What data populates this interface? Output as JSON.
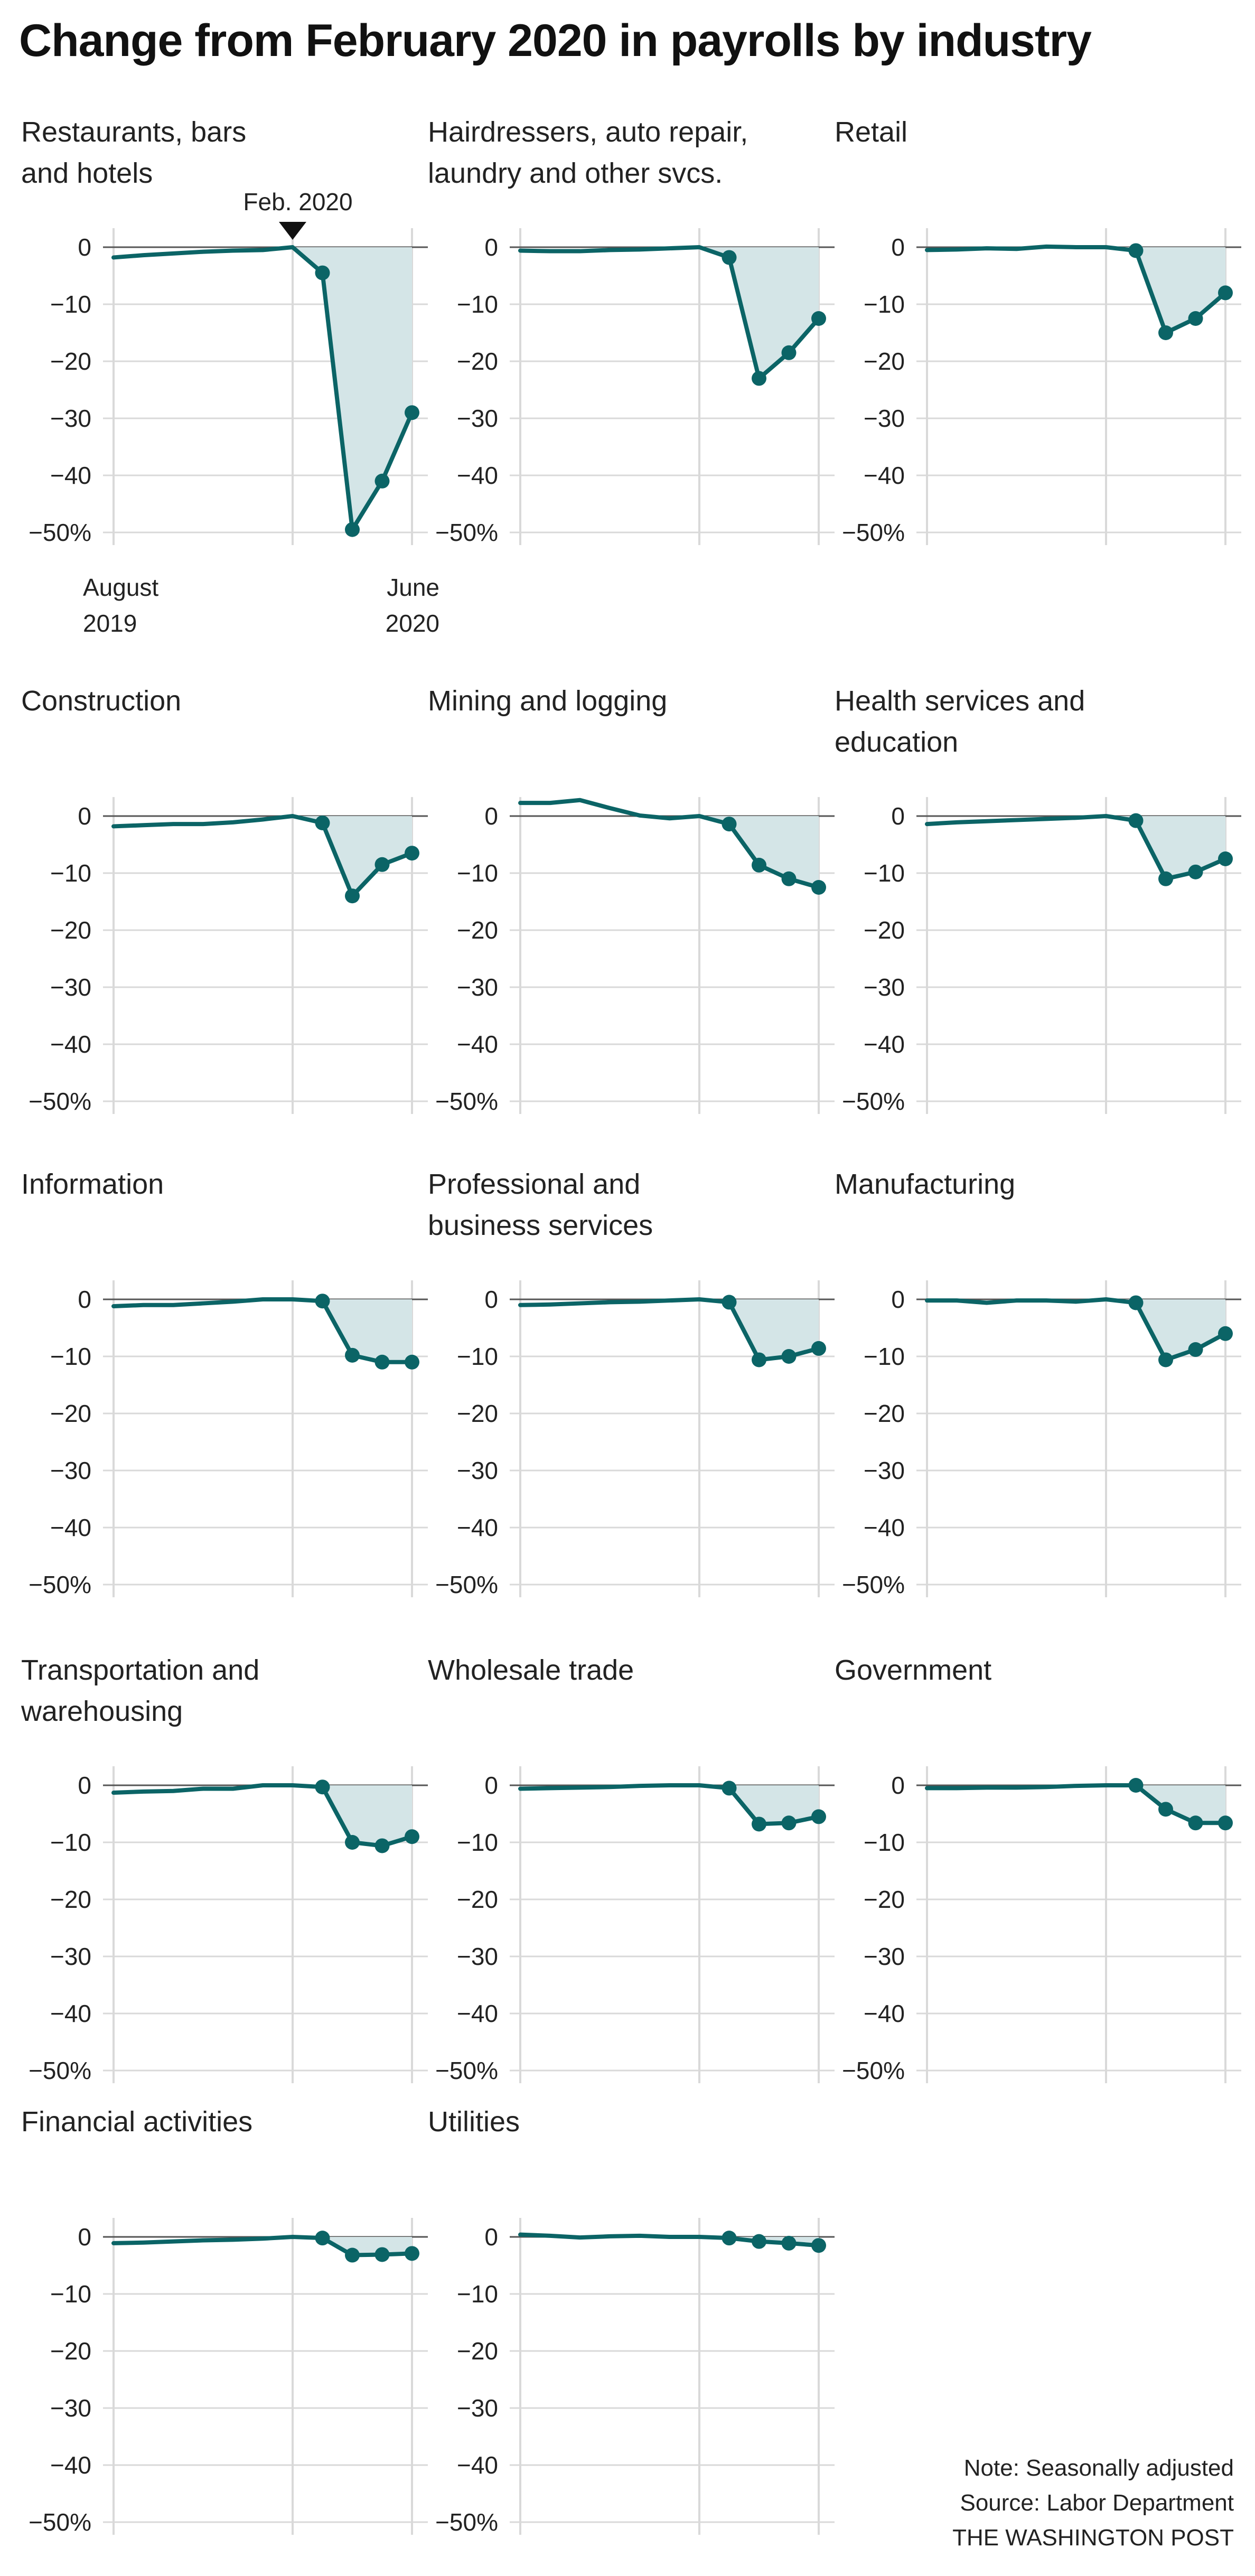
{
  "title": "Change from February 2020 in payrolls by industry",
  "note": "Note: Seasonally adjusted",
  "source": "Source: Labor Department",
  "credit": "THE WASHINGTON POST",
  "colors": {
    "line": "#0b6466",
    "fill": "#d4e5e7",
    "grid": "#d9d9d9",
    "zero": "#555555",
    "text": "#222222"
  },
  "annotation": {
    "label": "Feb. 2020",
    "x": "2020-02"
  },
  "x_axis_labels": {
    "start": [
      "August",
      "2019"
    ],
    "end": [
      "June",
      "2020"
    ]
  },
  "chart_data": [
    {
      "type": "area",
      "title": [
        "Restaurants, bars",
        "and hotels"
      ],
      "x": [
        "2019-08",
        "2019-09",
        "2019-10",
        "2019-11",
        "2019-12",
        "2020-01",
        "2020-02",
        "2020-03",
        "2020-04",
        "2020-05",
        "2020-06"
      ],
      "y": [
        -1.8,
        -1.4,
        -1.1,
        -0.8,
        -0.6,
        -0.5,
        0,
        -4.5,
        -49.5,
        -41,
        -29
      ],
      "yticks": [
        0,
        -10,
        -20,
        -30,
        -40,
        -50
      ],
      "ylim": [
        -50,
        3
      ],
      "y_unit": "%",
      "markers_from": "2020-03"
    },
    {
      "type": "area",
      "title": [
        "Hairdressers, auto repair,",
        "laundry and other svcs."
      ],
      "x": [
        "2019-08",
        "2019-09",
        "2019-10",
        "2019-11",
        "2019-12",
        "2020-01",
        "2020-02",
        "2020-03",
        "2020-04",
        "2020-05",
        "2020-06"
      ],
      "y": [
        -0.6,
        -0.7,
        -0.7,
        -0.5,
        -0.4,
        -0.2,
        0,
        -1.8,
        -23,
        -18.5,
        -12.5
      ],
      "yticks": [
        0,
        -10,
        -20,
        -30,
        -40,
        -50
      ],
      "ylim": [
        -50,
        3
      ],
      "y_unit": "%",
      "markers_from": "2020-03"
    },
    {
      "type": "area",
      "title": [
        "Retail"
      ],
      "x": [
        "2019-08",
        "2019-09",
        "2019-10",
        "2019-11",
        "2019-12",
        "2020-01",
        "2020-02",
        "2020-03",
        "2020-04",
        "2020-05",
        "2020-06"
      ],
      "y": [
        -0.5,
        -0.4,
        -0.2,
        -0.3,
        0.1,
        0,
        0,
        -0.6,
        -15,
        -12.5,
        -8
      ],
      "yticks": [
        0,
        -10,
        -20,
        -30,
        -40,
        -50
      ],
      "ylim": [
        -50,
        3
      ],
      "y_unit": "%",
      "markers_from": "2020-03"
    },
    {
      "type": "area",
      "title": [
        "Construction"
      ],
      "x": [
        "2019-08",
        "2019-09",
        "2019-10",
        "2019-11",
        "2019-12",
        "2020-01",
        "2020-02",
        "2020-03",
        "2020-04",
        "2020-05",
        "2020-06"
      ],
      "y": [
        -1.8,
        -1.6,
        -1.4,
        -1.4,
        -1.1,
        -0.6,
        0,
        -1.2,
        -14,
        -8.5,
        -6.5
      ],
      "yticks": [
        0,
        -10,
        -20,
        -30,
        -40,
        -50
      ],
      "ylim": [
        -50,
        3
      ],
      "y_unit": "%",
      "markers_from": "2020-03"
    },
    {
      "type": "area",
      "title": [
        "Mining and logging"
      ],
      "x": [
        "2019-08",
        "2019-09",
        "2019-10",
        "2019-11",
        "2019-12",
        "2020-01",
        "2020-02",
        "2020-03",
        "2020-04",
        "2020-05",
        "2020-06"
      ],
      "y": [
        2.3,
        2.3,
        2.8,
        1.4,
        0.1,
        -0.4,
        0,
        -1.4,
        -8.6,
        -11,
        -12.5
      ],
      "yticks": [
        0,
        -10,
        -20,
        -30,
        -40,
        -50
      ],
      "ylim": [
        -50,
        3
      ],
      "y_unit": "%",
      "markers_from": "2020-03"
    },
    {
      "type": "area",
      "title": [
        "Health services and",
        "education"
      ],
      "x": [
        "2019-08",
        "2019-09",
        "2019-10",
        "2019-11",
        "2019-12",
        "2020-01",
        "2020-02",
        "2020-03",
        "2020-04",
        "2020-05",
        "2020-06"
      ],
      "y": [
        -1.4,
        -1.1,
        -0.9,
        -0.7,
        -0.5,
        -0.3,
        0,
        -0.8,
        -11,
        -9.8,
        -7.5
      ],
      "yticks": [
        0,
        -10,
        -20,
        -30,
        -40,
        -50
      ],
      "ylim": [
        -50,
        3
      ],
      "y_unit": "%",
      "markers_from": "2020-03"
    },
    {
      "type": "area",
      "title": [
        "Information"
      ],
      "x": [
        "2019-08",
        "2019-09",
        "2019-10",
        "2019-11",
        "2019-12",
        "2020-01",
        "2020-02",
        "2020-03",
        "2020-04",
        "2020-05",
        "2020-06"
      ],
      "y": [
        -1.2,
        -1,
        -1,
        -0.7,
        -0.4,
        0,
        0,
        -0.3,
        -9.8,
        -11,
        -11
      ],
      "yticks": [
        0,
        -10,
        -20,
        -30,
        -40,
        -50
      ],
      "ylim": [
        -50,
        3
      ],
      "y_unit": "%",
      "markers_from": "2020-03"
    },
    {
      "type": "area",
      "title": [
        "Professional and",
        "business services"
      ],
      "x": [
        "2019-08",
        "2019-09",
        "2019-10",
        "2019-11",
        "2019-12",
        "2020-01",
        "2020-02",
        "2020-03",
        "2020-04",
        "2020-05",
        "2020-06"
      ],
      "y": [
        -1,
        -0.9,
        -0.7,
        -0.5,
        -0.4,
        -0.2,
        0,
        -0.5,
        -10.6,
        -10,
        -8.6
      ],
      "yticks": [
        0,
        -10,
        -20,
        -30,
        -40,
        -50
      ],
      "ylim": [
        -50,
        3
      ],
      "y_unit": "%",
      "markers_from": "2020-03"
    },
    {
      "type": "area",
      "title": [
        "Manufacturing"
      ],
      "x": [
        "2019-08",
        "2019-09",
        "2019-10",
        "2019-11",
        "2019-12",
        "2020-01",
        "2020-02",
        "2020-03",
        "2020-04",
        "2020-05",
        "2020-06"
      ],
      "y": [
        -0.2,
        -0.2,
        -0.6,
        -0.2,
        -0.2,
        -0.4,
        0,
        -0.6,
        -10.6,
        -8.8,
        -6
      ],
      "yticks": [
        0,
        -10,
        -20,
        -30,
        -40,
        -50
      ],
      "ylim": [
        -50,
        3
      ],
      "y_unit": "%",
      "markers_from": "2020-03"
    },
    {
      "type": "area",
      "title": [
        "Transportation and",
        "warehousing"
      ],
      "x": [
        "2019-08",
        "2019-09",
        "2019-10",
        "2019-11",
        "2019-12",
        "2020-01",
        "2020-02",
        "2020-03",
        "2020-04",
        "2020-05",
        "2020-06"
      ],
      "y": [
        -1.3,
        -1.1,
        -1,
        -0.6,
        -0.6,
        0,
        0,
        -0.3,
        -10,
        -10.6,
        -9
      ],
      "yticks": [
        0,
        -10,
        -20,
        -30,
        -40,
        -50
      ],
      "ylim": [
        -50,
        3
      ],
      "y_unit": "%",
      "markers_from": "2020-03"
    },
    {
      "type": "area",
      "title": [
        "Wholesale trade"
      ],
      "x": [
        "2019-08",
        "2019-09",
        "2019-10",
        "2019-11",
        "2019-12",
        "2020-01",
        "2020-02",
        "2020-03",
        "2020-04",
        "2020-05",
        "2020-06"
      ],
      "y": [
        -0.6,
        -0.5,
        -0.4,
        -0.3,
        -0.1,
        0,
        0,
        -0.5,
        -6.8,
        -6.6,
        -5.5
      ],
      "yticks": [
        0,
        -10,
        -20,
        -30,
        -40,
        -50
      ],
      "ylim": [
        -50,
        3
      ],
      "y_unit": "%",
      "markers_from": "2020-03"
    },
    {
      "type": "area",
      "title": [
        "Government"
      ],
      "x": [
        "2019-08",
        "2019-09",
        "2019-10",
        "2019-11",
        "2019-12",
        "2020-01",
        "2020-02",
        "2020-03",
        "2020-04",
        "2020-05",
        "2020-06"
      ],
      "y": [
        -0.5,
        -0.5,
        -0.4,
        -0.4,
        -0.3,
        -0.1,
        0,
        0,
        -4.2,
        -6.6,
        -6.6
      ],
      "yticks": [
        0,
        -10,
        -20,
        -30,
        -40,
        -50
      ],
      "ylim": [
        -50,
        3
      ],
      "y_unit": "%",
      "markers_from": "2020-03"
    },
    {
      "type": "area",
      "title": [
        "Financial activities"
      ],
      "x": [
        "2019-08",
        "2019-09",
        "2019-10",
        "2019-11",
        "2019-12",
        "2020-01",
        "2020-02",
        "2020-03",
        "2020-04",
        "2020-05",
        "2020-06"
      ],
      "y": [
        -1.1,
        -1,
        -0.8,
        -0.6,
        -0.5,
        -0.3,
        0,
        -0.2,
        -3.2,
        -3.1,
        -2.9
      ],
      "yticks": [
        0,
        -10,
        -20,
        -30,
        -40,
        -50
      ],
      "ylim": [
        -50,
        3
      ],
      "y_unit": "%",
      "markers_from": "2020-03"
    },
    {
      "type": "area",
      "title": [
        "Utilities"
      ],
      "x": [
        "2019-08",
        "2019-09",
        "2019-10",
        "2019-11",
        "2019-12",
        "2020-01",
        "2020-02",
        "2020-03",
        "2020-04",
        "2020-05",
        "2020-06"
      ],
      "y": [
        0.4,
        0.2,
        -0.1,
        0.1,
        0.2,
        0,
        0,
        -0.2,
        -0.8,
        -1.1,
        -1.5
      ],
      "yticks": [
        0,
        -10,
        -20,
        -30,
        -40,
        -50
      ],
      "ylim": [
        -50,
        3
      ],
      "y_unit": "%",
      "markers_from": "2020-03"
    }
  ]
}
